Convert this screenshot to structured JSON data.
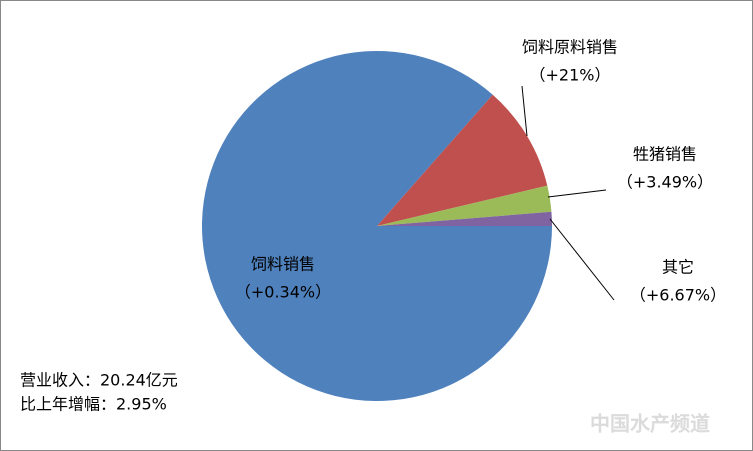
{
  "chart_data": {
    "type": "pie",
    "categories": [
      "饲料销售",
      "饲料原料销售",
      "牲猪销售",
      "其它"
    ],
    "growth_labels": [
      "（+0.34%）",
      "（+21%）",
      "（+3.49%）",
      "（+6.67%）"
    ],
    "values": [
      86.5,
      9.8,
      2.4,
      1.3
    ],
    "colors": [
      "#4f81bd",
      "#c0504d",
      "#9bbb59",
      "#8064a2"
    ],
    "annotations": [
      "营业收入：20.24亿元",
      "比上年增幅：2.95%"
    ],
    "watermark": "中国水产频道"
  }
}
